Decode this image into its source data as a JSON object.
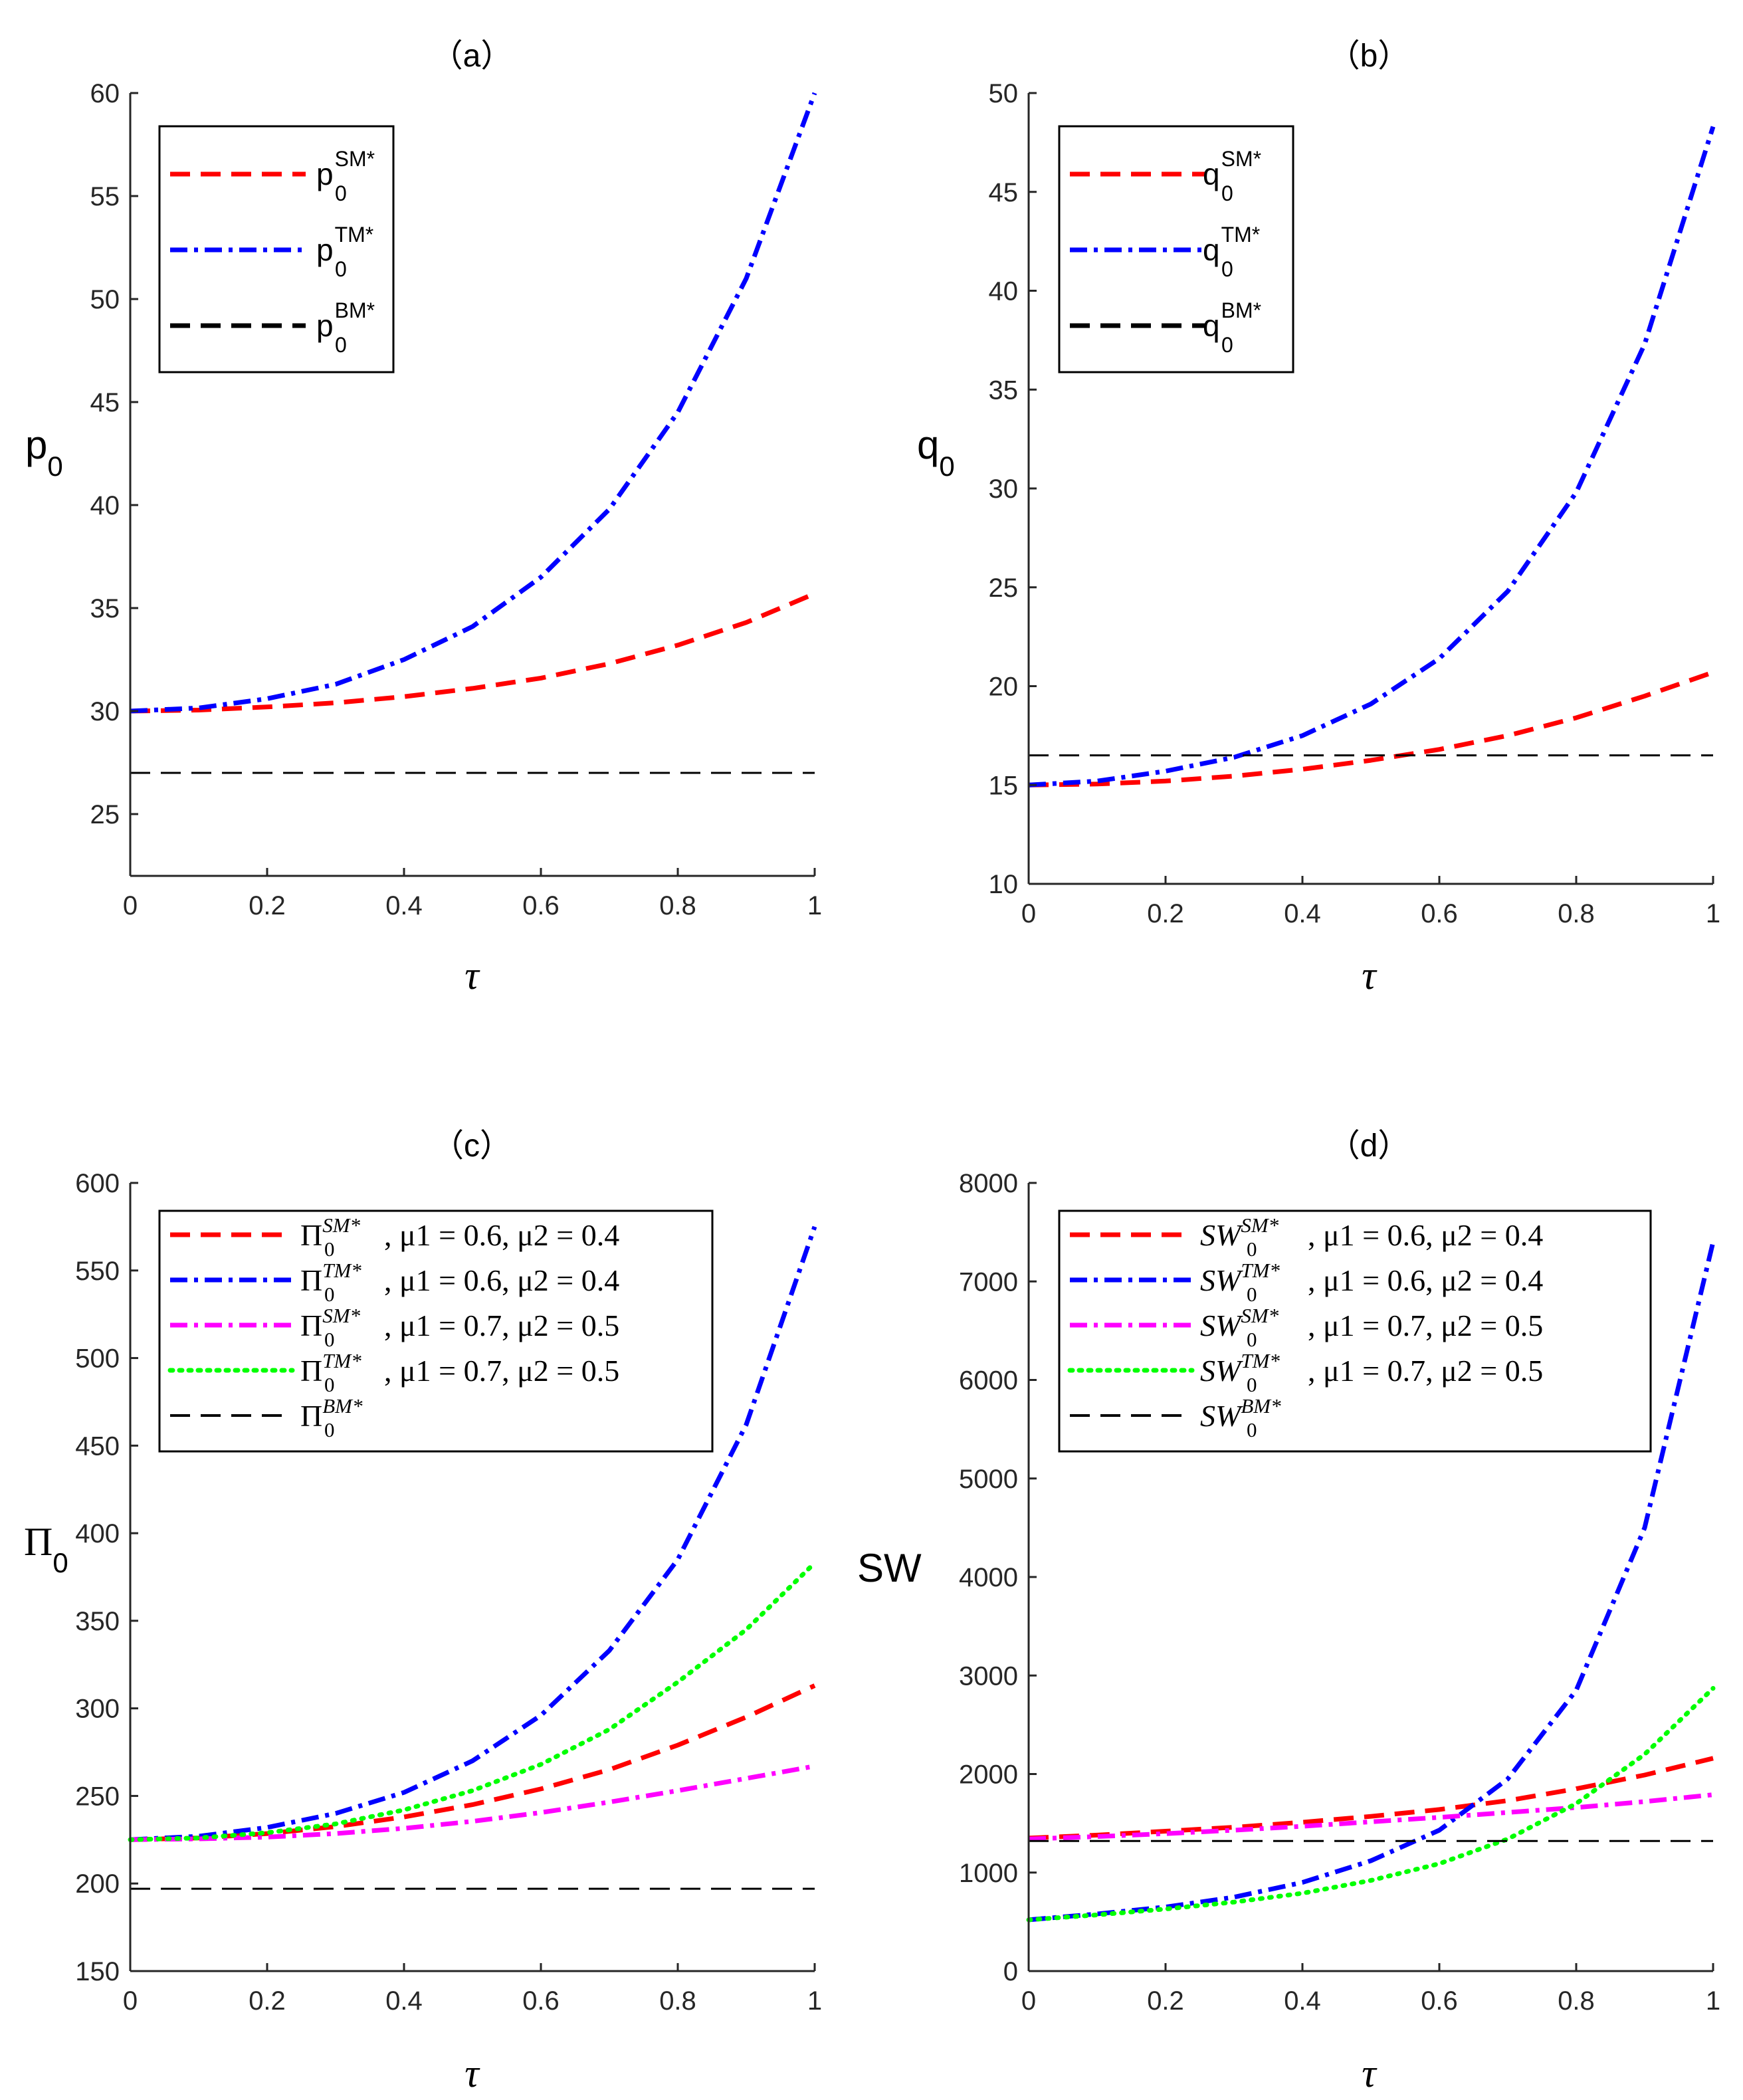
{
  "figure": {
    "background": "#ffffff",
    "axis_color": "#262626"
  },
  "chart_data": [
    {
      "id": "a",
      "type": "line",
      "title": "（a）",
      "xlabel": "τ",
      "ylabel": {
        "base": "p",
        "sub": "0"
      },
      "xlim": [
        0,
        1
      ],
      "ylim": [
        22,
        60
      ],
      "xticks": [
        0,
        0.2,
        0.4,
        0.6,
        0.8,
        1
      ],
      "xtick_labels": [
        "0",
        "0.2",
        "0.4",
        "0.6",
        "0.8",
        "1"
      ],
      "yticks": [
        25,
        30,
        35,
        40,
        45,
        50,
        55,
        60
      ],
      "ytick_labels": [
        "25",
        "30",
        "35",
        "40",
        "45",
        "50",
        "55",
        "60"
      ],
      "legend_style": "sans",
      "legend_position": "top-left",
      "series": [
        {
          "name": "p0SM*",
          "legend": {
            "base": "p",
            "sub": "0",
            "sup": "SM*"
          },
          "color": "#ff0000",
          "style": "dashed",
          "x": [
            0,
            0.1,
            0.2,
            0.3,
            0.4,
            0.5,
            0.6,
            0.7,
            0.8,
            0.9,
            1.0
          ],
          "y": [
            30.0,
            30.05,
            30.2,
            30.4,
            30.7,
            31.1,
            31.6,
            32.3,
            33.2,
            34.3,
            35.7
          ]
        },
        {
          "name": "p0TM*",
          "legend": {
            "base": "p",
            "sub": "0",
            "sup": "TM*"
          },
          "color": "#0000ff",
          "style": "dashdot",
          "x": [
            0,
            0.1,
            0.2,
            0.3,
            0.4,
            0.5,
            0.6,
            0.7,
            0.8,
            0.9,
            1.0
          ],
          "y": [
            30.0,
            30.15,
            30.6,
            31.3,
            32.5,
            34.1,
            36.5,
            39.8,
            44.5,
            51.0,
            60.0
          ]
        },
        {
          "name": "p0BM*",
          "legend": {
            "base": "p",
            "sub": "0",
            "sup": "BM*"
          },
          "color": "#000000",
          "style": "longdash",
          "x": [
            0,
            1.0
          ],
          "y": [
            27.0,
            27.0
          ]
        }
      ]
    },
    {
      "id": "b",
      "type": "line",
      "title": "（b）",
      "xlabel": "τ",
      "ylabel": {
        "base": "q",
        "sub": "0"
      },
      "xlim": [
        0,
        1
      ],
      "ylim": [
        10,
        50
      ],
      "xticks": [
        0,
        0.2,
        0.4,
        0.6,
        0.8,
        1
      ],
      "xtick_labels": [
        "0",
        "0.2",
        "0.4",
        "0.6",
        "0.8",
        "1"
      ],
      "yticks": [
        10,
        15,
        20,
        25,
        30,
        35,
        40,
        45,
        50
      ],
      "ytick_labels": [
        "10",
        "15",
        "20",
        "25",
        "30",
        "35",
        "40",
        "45",
        "50"
      ],
      "legend_style": "sans",
      "legend_position": "top-left",
      "series": [
        {
          "name": "q0SM*",
          "legend": {
            "base": "q",
            "sub": "0",
            "sup": "SM*"
          },
          "color": "#ff0000",
          "style": "dashed",
          "x": [
            0,
            0.1,
            0.2,
            0.3,
            0.4,
            0.5,
            0.6,
            0.7,
            0.8,
            0.9,
            1.0
          ],
          "y": [
            15.0,
            15.05,
            15.2,
            15.45,
            15.8,
            16.25,
            16.8,
            17.5,
            18.4,
            19.5,
            20.7
          ]
        },
        {
          "name": "q0TM*",
          "legend": {
            "base": "q",
            "sub": "0",
            "sup": "TM*"
          },
          "color": "#0000ff",
          "style": "dashdot",
          "x": [
            0,
            0.1,
            0.2,
            0.3,
            0.4,
            0.5,
            0.6,
            0.7,
            0.8,
            0.9,
            1.0
          ],
          "y": [
            15.0,
            15.2,
            15.7,
            16.4,
            17.5,
            19.1,
            21.4,
            24.8,
            29.8,
            37.3,
            48.3
          ]
        },
        {
          "name": "q0BM*",
          "legend": {
            "base": "q",
            "sub": "0",
            "sup": "BM*"
          },
          "color": "#000000",
          "style": "longdash",
          "x": [
            0,
            1.0
          ],
          "y": [
            16.5,
            16.5
          ]
        }
      ]
    },
    {
      "id": "c",
      "type": "line",
      "title": "（c）",
      "xlabel": "τ",
      "ylabel": {
        "base": "Π",
        "sub": "0"
      },
      "xlim": [
        0,
        1
      ],
      "ylim": [
        150,
        600
      ],
      "xticks": [
        0,
        0.2,
        0.4,
        0.6,
        0.8,
        1
      ],
      "xtick_labels": [
        "0",
        "0.2",
        "0.4",
        "0.6",
        "0.8",
        "1"
      ],
      "yticks": [
        150,
        200,
        250,
        300,
        350,
        400,
        450,
        500,
        550,
        600
      ],
      "ytick_labels": [
        "150",
        "200",
        "250",
        "300",
        "350",
        "400",
        "450",
        "500",
        "550",
        "600"
      ],
      "legend_style": "serif",
      "legend_position": "top-left",
      "series": [
        {
          "name": "Pi0SM* mu1=0.6 mu2=0.4",
          "legend": {
            "base": "Π",
            "sub": "0",
            "sup": "SM*",
            "params": ", μ1 = 0.6, μ2 = 0.4"
          },
          "color": "#ff0000",
          "style": "dashed",
          "x": [
            0,
            0.1,
            0.2,
            0.3,
            0.4,
            0.5,
            0.6,
            0.7,
            0.8,
            0.9,
            1.0
          ],
          "y": [
            225,
            226,
            228.5,
            232.5,
            238,
            245,
            254,
            265,
            279,
            295,
            313
          ]
        },
        {
          "name": "Pi0TM* mu1=0.6 mu2=0.4",
          "legend": {
            "base": "Π",
            "sub": "0",
            "sup": "TM*",
            "params": ", μ1 = 0.6, μ2 = 0.4"
          },
          "color": "#0000ff",
          "style": "dashdot",
          "x": [
            0,
            0.1,
            0.2,
            0.3,
            0.4,
            0.5,
            0.6,
            0.7,
            0.8,
            0.9,
            1.0
          ],
          "y": [
            225,
            227,
            232,
            240,
            252,
            270,
            296,
            333,
            385,
            462,
            575
          ]
        },
        {
          "name": "Pi0SM* mu1=0.7 mu2=0.5",
          "legend": {
            "base": "Π",
            "sub": "0",
            "sup": "SM*",
            "params": ", μ1 = 0.7, μ2 = 0.5"
          },
          "color": "#ff00ff",
          "style": "dashdot",
          "x": [
            0,
            0.1,
            0.2,
            0.3,
            0.4,
            0.5,
            0.6,
            0.7,
            0.8,
            0.9,
            1.0
          ],
          "y": [
            225,
            225.5,
            226.5,
            228.5,
            231.5,
            235.5,
            240.5,
            246.5,
            253,
            260,
            267
          ]
        },
        {
          "name": "Pi0TM* mu1=0.7 mu2=0.5",
          "legend": {
            "base": "Π",
            "sub": "0",
            "sup": "TM*",
            "params": ", μ1 = 0.7, μ2 = 0.5"
          },
          "color": "#00ff00",
          "style": "dotted",
          "x": [
            0,
            0.1,
            0.2,
            0.3,
            0.4,
            0.5,
            0.6,
            0.7,
            0.8,
            0.9,
            1.0
          ],
          "y": [
            225,
            226,
            229,
            234,
            242,
            253,
            268,
            288,
            315,
            345,
            383
          ]
        },
        {
          "name": "Pi0BM*",
          "legend": {
            "base": "Π",
            "sub": "0",
            "sup": "BM*",
            "params": ""
          },
          "color": "#000000",
          "style": "longdash",
          "x": [
            0,
            1.0
          ],
          "y": [
            197,
            197
          ]
        }
      ]
    },
    {
      "id": "d",
      "type": "line",
      "title": "（d）",
      "xlabel": "τ",
      "ylabel": {
        "base": "SW",
        "sub": ""
      },
      "xlim": [
        0,
        1
      ],
      "ylim": [
        0,
        8000
      ],
      "xticks": [
        0,
        0.2,
        0.4,
        0.6,
        0.8,
        1
      ],
      "xtick_labels": [
        "0",
        "0.2",
        "0.4",
        "0.6",
        "0.8",
        "1"
      ],
      "yticks": [
        0,
        1000,
        2000,
        3000,
        4000,
        5000,
        6000,
        7000,
        8000
      ],
      "ytick_labels": [
        "0",
        "1000",
        "2000",
        "3000",
        "4000",
        "5000",
        "6000",
        "7000",
        "8000"
      ],
      "legend_style": "serif",
      "legend_position": "top-left",
      "series": [
        {
          "name": "SW0SM* mu1=0.6 mu2=0.4",
          "legend": {
            "base": "SW",
            "sub": "0",
            "sup": "SM*",
            "params": ", μ1 = 0.6, μ2 = 0.4"
          },
          "color": "#ff0000",
          "style": "dashed",
          "x": [
            0,
            0.1,
            0.2,
            0.3,
            0.4,
            0.5,
            0.6,
            0.7,
            0.8,
            0.9,
            1.0
          ],
          "y": [
            1350,
            1380,
            1420,
            1460,
            1510,
            1570,
            1640,
            1730,
            1850,
            1990,
            2160
          ]
        },
        {
          "name": "SW0TM* mu1=0.6 mu2=0.4",
          "legend": {
            "base": "SW",
            "sub": "0",
            "sup": "TM*",
            "params": ", μ1 = 0.6, μ2 = 0.4"
          },
          "color": "#0000ff",
          "style": "dashdot",
          "x": [
            0,
            0.1,
            0.2,
            0.3,
            0.4,
            0.5,
            0.6,
            0.7,
            0.8,
            0.9,
            1.0
          ],
          "y": [
            520,
            580,
            650,
            750,
            900,
            1120,
            1430,
            1950,
            2850,
            4500,
            7400
          ]
        },
        {
          "name": "SW0SM* mu1=0.7 mu2=0.5",
          "legend": {
            "base": "SW",
            "sub": "0",
            "sup": "SM*",
            "params": ", μ1 = 0.7, μ2 = 0.5"
          },
          "color": "#ff00ff",
          "style": "dashdot",
          "x": [
            0,
            0.1,
            0.2,
            0.3,
            0.4,
            0.5,
            0.6,
            0.7,
            0.8,
            0.9,
            1.0
          ],
          "y": [
            1340,
            1365,
            1395,
            1430,
            1470,
            1515,
            1560,
            1610,
            1660,
            1720,
            1790
          ]
        },
        {
          "name": "SW0TM* mu1=0.7 mu2=0.5",
          "legend": {
            "base": "SW",
            "sub": "0",
            "sup": "TM*",
            "params": ", μ1 = 0.7, μ2 = 0.5"
          },
          "color": "#00ff00",
          "style": "dotted",
          "x": [
            0,
            0.1,
            0.2,
            0.3,
            0.4,
            0.5,
            0.6,
            0.7,
            0.8,
            0.9,
            1.0
          ],
          "y": [
            520,
            570,
            630,
            700,
            790,
            920,
            1090,
            1340,
            1700,
            2200,
            2870
          ]
        },
        {
          "name": "SW0BM*",
          "legend": {
            "base": "SW",
            "sub": "0",
            "sup": "BM*",
            "params": ""
          },
          "color": "#000000",
          "style": "longdash",
          "x": [
            0,
            1.0
          ],
          "y": [
            1320,
            1320
          ]
        }
      ]
    }
  ]
}
